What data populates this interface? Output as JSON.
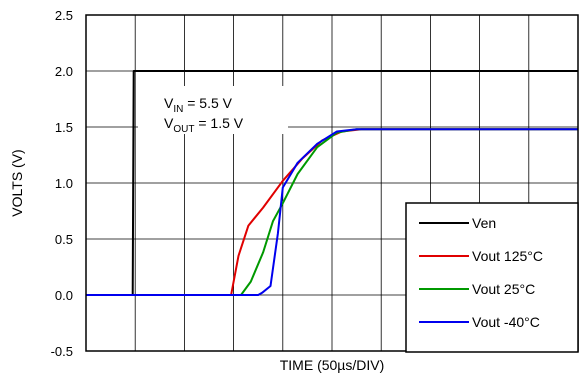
{
  "chart_data": {
    "type": "line",
    "xlabel": "TIME (50µs/DIV)",
    "ylabel": "VOLTS (V)",
    "xlim": [
      0,
      10
    ],
    "ylim": [
      -0.5,
      2.5
    ],
    "yticks": [
      "-0.5",
      "0.0",
      "0.5",
      "1.0",
      "1.5",
      "2.0",
      "2.5"
    ],
    "grid": true,
    "legend_position": "bottom-right",
    "annotation": {
      "line1": {
        "prefix": "V",
        "sub": "IN",
        "suffix": " = 5.5 V"
      },
      "line2": {
        "prefix": "V",
        "sub": "OUT",
        "suffix": " = 1.5 V"
      }
    },
    "series": [
      {
        "name": "Ven",
        "color": "#000000",
        "points": [
          [
            0,
            0.0
          ],
          [
            0.95,
            0.0
          ],
          [
            0.97,
            2.0
          ],
          [
            10,
            2.0
          ]
        ]
      },
      {
        "name": "Vout 125°C",
        "color": "#e00000",
        "points": [
          [
            0,
            0.0
          ],
          [
            2.95,
            0.0
          ],
          [
            3.1,
            0.35
          ],
          [
            3.3,
            0.62
          ],
          [
            3.6,
            0.78
          ],
          [
            4.0,
            1.02
          ],
          [
            4.4,
            1.22
          ],
          [
            4.8,
            1.38
          ],
          [
            5.2,
            1.46
          ],
          [
            5.6,
            1.48
          ],
          [
            10,
            1.48
          ]
        ]
      },
      {
        "name": "Vout 25°C",
        "color": "#009900",
        "points": [
          [
            0,
            0.0
          ],
          [
            3.15,
            0.0
          ],
          [
            3.35,
            0.12
          ],
          [
            3.6,
            0.38
          ],
          [
            3.8,
            0.66
          ],
          [
            4.0,
            0.82
          ],
          [
            4.3,
            1.08
          ],
          [
            4.7,
            1.32
          ],
          [
            5.1,
            1.45
          ],
          [
            5.5,
            1.48
          ],
          [
            10,
            1.48
          ]
        ]
      },
      {
        "name": "Vout -40°C",
        "color": "#0000ee",
        "points": [
          [
            0,
            0.0
          ],
          [
            3.5,
            0.0
          ],
          [
            3.58,
            0.02
          ],
          [
            3.75,
            0.08
          ],
          [
            3.9,
            0.55
          ],
          [
            4.0,
            0.96
          ],
          [
            4.3,
            1.18
          ],
          [
            4.7,
            1.35
          ],
          [
            5.1,
            1.46
          ],
          [
            5.5,
            1.48
          ],
          [
            10,
            1.48
          ]
        ]
      }
    ]
  }
}
